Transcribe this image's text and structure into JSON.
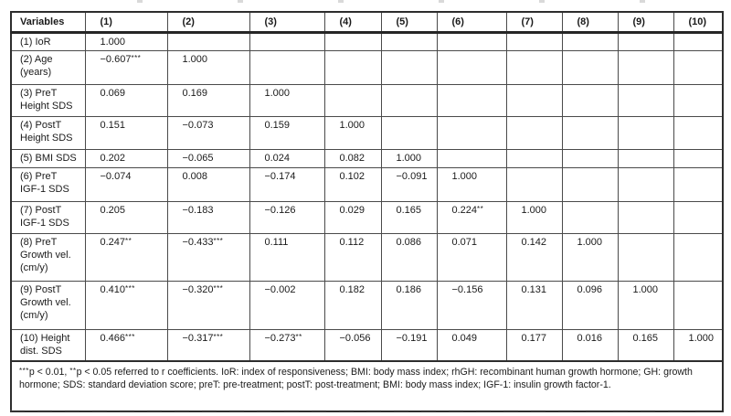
{
  "table": {
    "header": [
      "Variables",
      "(1)",
      "(2)",
      "(3)",
      "(4)",
      "(5)",
      "(6)",
      "(7)",
      "(8)",
      "(9)",
      "(10)"
    ],
    "rows": [
      {
        "label": "(1) IoR",
        "cells": [
          "1.000",
          "",
          "",
          "",
          "",
          "",
          "",
          "",
          "",
          ""
        ]
      },
      {
        "label": "(2) Age\n(years)",
        "cells": [
          "−0.607***",
          "1.000",
          "",
          "",
          "",
          "",
          "",
          "",
          "",
          ""
        ]
      },
      {
        "label": "(3) PreT\nHeight SDS",
        "cells": [
          "0.069",
          "0.169",
          "1.000",
          "",
          "",
          "",
          "",
          "",
          "",
          ""
        ]
      },
      {
        "label": "(4) PostT\nHeight SDS",
        "cells": [
          "0.151",
          "−0.073",
          "0.159",
          "1.000",
          "",
          "",
          "",
          "",
          "",
          ""
        ]
      },
      {
        "label": "(5) BMI SDS",
        "cells": [
          "0.202",
          "−0.065",
          "0.024",
          "0.082",
          "1.000",
          "",
          "",
          "",
          "",
          ""
        ]
      },
      {
        "label": "(6) PreT\nIGF-1 SDS",
        "cells": [
          "−0.074",
          "0.008",
          "−0.174",
          "0.102",
          "−0.091",
          "1.000",
          "",
          "",
          "",
          ""
        ]
      },
      {
        "label": "(7) PostT\nIGF-1 SDS",
        "cells": [
          "0.205",
          "−0.183",
          "−0.126",
          "0.029",
          "0.165",
          "0.224**",
          "1.000",
          "",
          "",
          ""
        ]
      },
      {
        "label": "(8) PreT\nGrowth vel.\n(cm/y)",
        "cells": [
          "0.247**",
          "−0.433***",
          "0.111",
          "0.112",
          "0.086",
          "0.071",
          "0.142",
          "1.000",
          "",
          ""
        ]
      },
      {
        "label": "(9) PostT\nGrowth vel.\n(cm/y)",
        "cells": [
          "0.410***",
          "−0.320***",
          "−0.002",
          "0.182",
          "0.186",
          "−0.156",
          "0.131",
          "0.096",
          "1.000",
          ""
        ]
      },
      {
        "label": "(10) Height\ndist. SDS",
        "cells": [
          "0.466***",
          "−0.317***",
          "−0.273**",
          "−0.056",
          "−0.191",
          "0.049",
          "0.177",
          "0.016",
          "0.165",
          "1.000"
        ]
      }
    ],
    "footnote": "***p < 0.01, **p < 0.05 referred to r coefficients. IoR: index of responsiveness; BMI: body mass index; rhGH: recombinant human growth hormone; GH: growth hormone; SDS: standard deviation score; preT: pre-treatment; postT: post-treatment; BMI: body mass index; IGF-1: insulin growth factor-1."
  },
  "colors": {
    "background": "#ffffff",
    "text": "#1a1a1a",
    "inner_border": "#4a4a4a",
    "outer_border": "#2d2d2d"
  }
}
